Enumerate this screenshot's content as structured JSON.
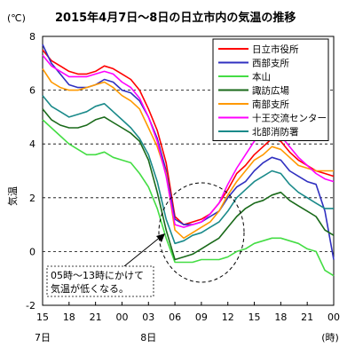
{
  "chart_data": {
    "type": "line",
    "title": "2015年4月7日～8日の日立市内の気温の推移",
    "unit": "(℃)",
    "ylabel": "気温",
    "ylim": [
      -2,
      8
    ],
    "yticks": [
      "-2",
      "0",
      "2",
      "4",
      "6",
      "8"
    ],
    "xlim": [
      15,
      48
    ],
    "xticks": [
      {
        "label": "15",
        "x": 15
      },
      {
        "label": "18",
        "x": 18
      },
      {
        "label": "21",
        "x": 21
      },
      {
        "label": "00",
        "x": 24
      },
      {
        "label": "03",
        "x": 27
      },
      {
        "label": "06",
        "x": 30
      },
      {
        "label": "09",
        "x": 33
      },
      {
        "label": "12",
        "x": 36
      },
      {
        "label": "15",
        "x": 39
      },
      {
        "label": "18",
        "x": 42
      },
      {
        "label": "21",
        "x": 45
      },
      {
        "label": "00",
        "x": 48
      }
    ],
    "date_labels": [
      {
        "label": "7日",
        "x": 15
      },
      {
        "label": "8日",
        "x": 27
      }
    ],
    "x_unit": "(時)",
    "grid": "dashed-horizontal",
    "legend_position": "top-right",
    "series": [
      {
        "name": "日立市役所",
        "color": "#ff0000",
        "x": [
          15,
          16,
          17,
          18,
          19,
          20,
          21,
          22,
          23,
          24,
          25,
          26,
          27,
          28,
          29,
          30,
          31,
          32,
          33,
          34,
          35,
          36,
          37,
          38,
          39,
          40,
          41,
          42,
          43,
          44,
          45,
          46,
          47,
          48
        ],
        "y": [
          7.5,
          7.1,
          6.9,
          6.7,
          6.6,
          6.6,
          6.7,
          6.9,
          6.8,
          6.6,
          6.4,
          6.0,
          5.3,
          4.5,
          3.3,
          1.3,
          1.0,
          1.1,
          1.2,
          1.4,
          1.8,
          2.3,
          2.9,
          3.2,
          3.6,
          3.9,
          4.2,
          4.1,
          3.7,
          3.4,
          3.2,
          3.0,
          2.9,
          2.8
        ]
      },
      {
        "name": "西部支所",
        "color": "#3030c0",
        "x": [
          15,
          16,
          17,
          18,
          19,
          20,
          21,
          22,
          23,
          24,
          25,
          26,
          27,
          28,
          29,
          30,
          31,
          32,
          33,
          34,
          35,
          36,
          37,
          38,
          39,
          40,
          41,
          42,
          43,
          44,
          45,
          46,
          47,
          48
        ],
        "y": [
          7.7,
          7.0,
          6.6,
          6.2,
          6.1,
          6.1,
          6.2,
          6.4,
          6.3,
          6.0,
          5.9,
          5.6,
          5.0,
          4.2,
          3.0,
          1.2,
          1.0,
          1.0,
          1.1,
          1.3,
          1.5,
          2.0,
          2.4,
          2.6,
          3.0,
          3.3,
          3.5,
          3.4,
          3.0,
          2.8,
          2.6,
          2.5,
          1.5,
          -0.3
        ]
      },
      {
        "name": "本山",
        "color": "#44dd44",
        "x": [
          15,
          16,
          17,
          18,
          19,
          20,
          21,
          22,
          23,
          24,
          25,
          26,
          27,
          28,
          29,
          30,
          31,
          32,
          33,
          34,
          35,
          36,
          37,
          38,
          39,
          40,
          41,
          42,
          43,
          44,
          45,
          46,
          47,
          48
        ],
        "y": [
          4.9,
          4.6,
          4.3,
          4.0,
          3.8,
          3.6,
          3.6,
          3.7,
          3.5,
          3.4,
          3.3,
          2.9,
          2.4,
          1.6,
          0.5,
          -0.4,
          -0.4,
          -0.4,
          -0.3,
          -0.3,
          -0.3,
          -0.2,
          0.0,
          0.1,
          0.3,
          0.4,
          0.5,
          0.5,
          0.4,
          0.3,
          0.1,
          0.0,
          -0.7,
          -0.9
        ]
      },
      {
        "name": "諏訪広場",
        "color": "#1a6a1a",
        "x": [
          15,
          16,
          17,
          18,
          19,
          20,
          21,
          22,
          23,
          24,
          25,
          26,
          27,
          28,
          29,
          30,
          31,
          32,
          33,
          34,
          35,
          36,
          37,
          38,
          39,
          40,
          41,
          42,
          43,
          44,
          45,
          46,
          47,
          48
        ],
        "y": [
          5.3,
          4.9,
          4.7,
          4.6,
          4.6,
          4.7,
          4.9,
          5.0,
          4.8,
          4.6,
          4.4,
          4.1,
          3.4,
          2.2,
          0.8,
          -0.3,
          -0.2,
          -0.1,
          0.1,
          0.3,
          0.5,
          0.9,
          1.3,
          1.6,
          1.8,
          1.9,
          2.1,
          2.2,
          1.9,
          1.7,
          1.5,
          1.3,
          0.8,
          0.6
        ]
      },
      {
        "name": "南部支所",
        "color": "#ff9900",
        "x": [
          15,
          16,
          17,
          18,
          19,
          20,
          21,
          22,
          23,
          24,
          25,
          26,
          27,
          28,
          29,
          30,
          31,
          32,
          33,
          34,
          35,
          36,
          37,
          38,
          39,
          40,
          41,
          42,
          43,
          44,
          45,
          46,
          47,
          48
        ],
        "y": [
          6.8,
          6.3,
          6.1,
          6.0,
          6.0,
          6.1,
          6.2,
          6.3,
          6.1,
          5.8,
          5.6,
          5.3,
          4.6,
          3.9,
          2.9,
          0.8,
          0.5,
          0.7,
          0.9,
          1.1,
          1.5,
          2.1,
          2.6,
          3.0,
          3.4,
          3.6,
          3.9,
          3.8,
          3.5,
          3.2,
          3.1,
          3.0,
          3.0,
          3.0
        ]
      },
      {
        "name": "十王交流センター",
        "color": "#ff00ff",
        "x": [
          15,
          16,
          17,
          18,
          19,
          20,
          21,
          22,
          23,
          24,
          25,
          26,
          27,
          28,
          29,
          30,
          31,
          32,
          33,
          34,
          35,
          36,
          37,
          38,
          39,
          40,
          41,
          42,
          43,
          44,
          45,
          46,
          47,
          48
        ],
        "y": [
          7.3,
          6.9,
          6.7,
          6.5,
          6.5,
          6.5,
          6.6,
          6.7,
          6.6,
          6.3,
          6.1,
          5.7,
          5.0,
          4.1,
          2.8,
          1.0,
          0.9,
          1.0,
          1.1,
          1.4,
          1.8,
          2.5,
          3.1,
          3.6,
          4.1,
          4.4,
          4.4,
          4.3,
          3.9,
          3.5,
          3.2,
          2.9,
          2.7,
          2.6
        ]
      },
      {
        "name": "北部消防署",
        "color": "#1a8a8a",
        "x": [
          15,
          16,
          17,
          18,
          19,
          20,
          21,
          22,
          23,
          24,
          25,
          26,
          27,
          28,
          29,
          30,
          31,
          32,
          33,
          34,
          35,
          36,
          37,
          38,
          39,
          40,
          41,
          42,
          43,
          44,
          45,
          46,
          47,
          48
        ],
        "y": [
          5.8,
          5.4,
          5.2,
          5.0,
          5.1,
          5.2,
          5.4,
          5.5,
          5.2,
          4.9,
          4.6,
          4.2,
          3.6,
          2.6,
          1.2,
          0.3,
          0.4,
          0.6,
          0.7,
          0.9,
          1.1,
          1.5,
          2.0,
          2.3,
          2.6,
          2.8,
          3.0,
          2.9,
          2.5,
          2.2,
          2.0,
          1.8,
          1.6,
          1.6
        ]
      }
    ],
    "annotation": {
      "lines": [
        "05時～13時にかけて",
        "気温が低くなる。"
      ]
    }
  }
}
